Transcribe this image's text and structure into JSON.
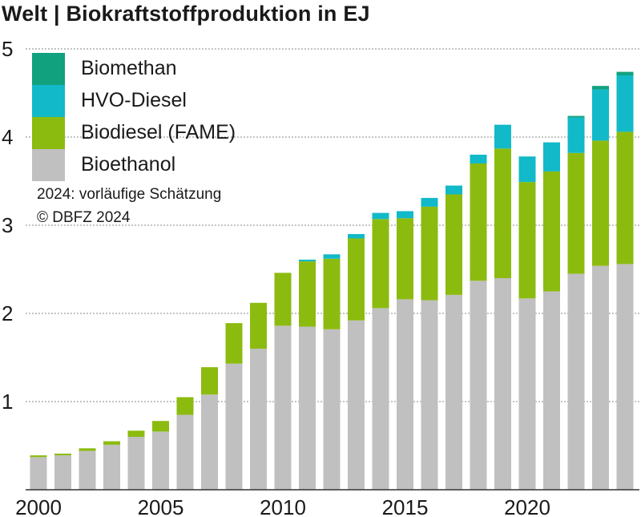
{
  "chart_data": {
    "type": "bar",
    "stacked": true,
    "title": "Welt | Biokraftstoffproduktion in EJ",
    "xlabel": "",
    "ylabel": "",
    "ylim": [
      0,
      5
    ],
    "y_ticks": [
      "1",
      "2",
      "3",
      "4",
      "5"
    ],
    "x_tick_labels": [
      "2000",
      "2005",
      "2010",
      "2015",
      "2020"
    ],
    "categories": [
      "2000",
      "2001",
      "2002",
      "2003",
      "2004",
      "2005",
      "2006",
      "2007",
      "2008",
      "2009",
      "2010",
      "2011",
      "2012",
      "2013",
      "2014",
      "2015",
      "2016",
      "2017",
      "2018",
      "2019",
      "2020",
      "2021",
      "2022",
      "2023",
      "2024"
    ],
    "series": [
      {
        "name": "Bioethanol",
        "color": "#c0c0c0",
        "values": [
          0.37,
          0.39,
          0.44,
          0.51,
          0.6,
          0.66,
          0.85,
          1.08,
          1.43,
          1.6,
          1.86,
          1.85,
          1.82,
          1.92,
          2.06,
          2.16,
          2.15,
          2.21,
          2.37,
          2.4,
          2.17,
          2.25,
          2.45,
          2.54,
          2.56
        ]
      },
      {
        "name": "Biodiesel (FAME)",
        "color": "#8cbb0f",
        "values": [
          0.02,
          0.02,
          0.03,
          0.04,
          0.07,
          0.12,
          0.2,
          0.31,
          0.46,
          0.52,
          0.6,
          0.74,
          0.8,
          0.93,
          1.01,
          0.92,
          1.06,
          1.14,
          1.33,
          1.47,
          1.32,
          1.36,
          1.37,
          1.42,
          1.5
        ]
      },
      {
        "name": "HVO-Diesel",
        "color": "#12b9c8",
        "values": [
          0,
          0,
          0,
          0,
          0,
          0,
          0,
          0,
          0,
          0,
          0,
          0.02,
          0.05,
          0.05,
          0.07,
          0.08,
          0.1,
          0.1,
          0.1,
          0.27,
          0.29,
          0.33,
          0.4,
          0.58,
          0.64
        ]
      },
      {
        "name": "Biomethan",
        "color": "#11a17e",
        "values": [
          0,
          0,
          0,
          0,
          0,
          0,
          0,
          0,
          0,
          0,
          0,
          0,
          0,
          0,
          0,
          0,
          0,
          0,
          0,
          0,
          0,
          0,
          0.02,
          0.04,
          0.04
        ]
      }
    ],
    "grid": true,
    "legend_position": "top-left",
    "notes": [
      "2024: vorläufige Schätzung",
      "© DBFZ 2024"
    ]
  }
}
